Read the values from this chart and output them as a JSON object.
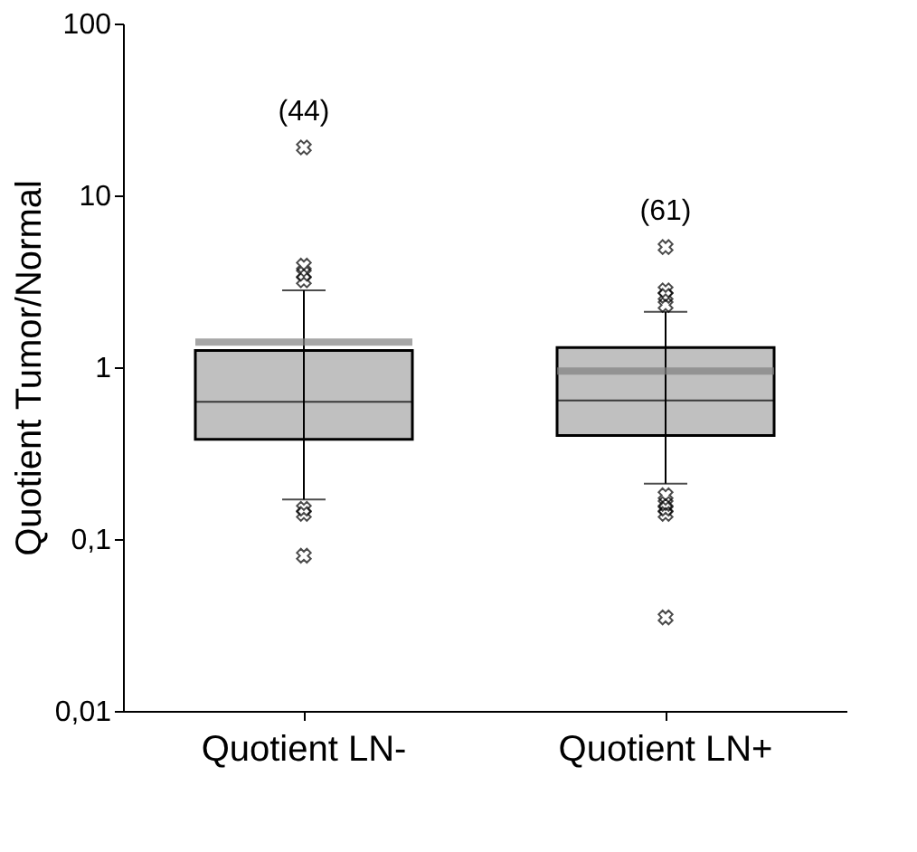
{
  "chart_data": {
    "type": "box",
    "ylabel": "Quotient Tumor/Normal",
    "categories": [
      "Quotient LN-",
      "Quotient LN+"
    ],
    "color": "#c0c0c0",
    "boxes": [
      {
        "low": 0.17,
        "q1": 0.38,
        "median": 0.63,
        "q3": 1.25,
        "high": 2.8,
        "mean": 1.4,
        "outliers": [
          3.2,
          3.5,
          3.9,
          19,
          0.15,
          0.14,
          0.08
        ]
      },
      {
        "low": 0.21,
        "q1": 0.4,
        "median": 0.64,
        "q3": 1.3,
        "high": 2.1,
        "mean": 0.95,
        "outliers": [
          2.3,
          2.6,
          2.8,
          5,
          0.18,
          0.16,
          0.15,
          0.14,
          0.035
        ]
      }
    ],
    "log": true,
    "ylim": [
      0.01,
      100
    ],
    "yticks": [
      {
        "value": 0.01,
        "label": "0,01"
      },
      {
        "value": 0.1,
        "label": "0,1"
      },
      1,
      10,
      100
    ],
    "marker": "cross",
    "grid": false,
    "annotations": [
      "(44)",
      "(61)"
    ]
  }
}
